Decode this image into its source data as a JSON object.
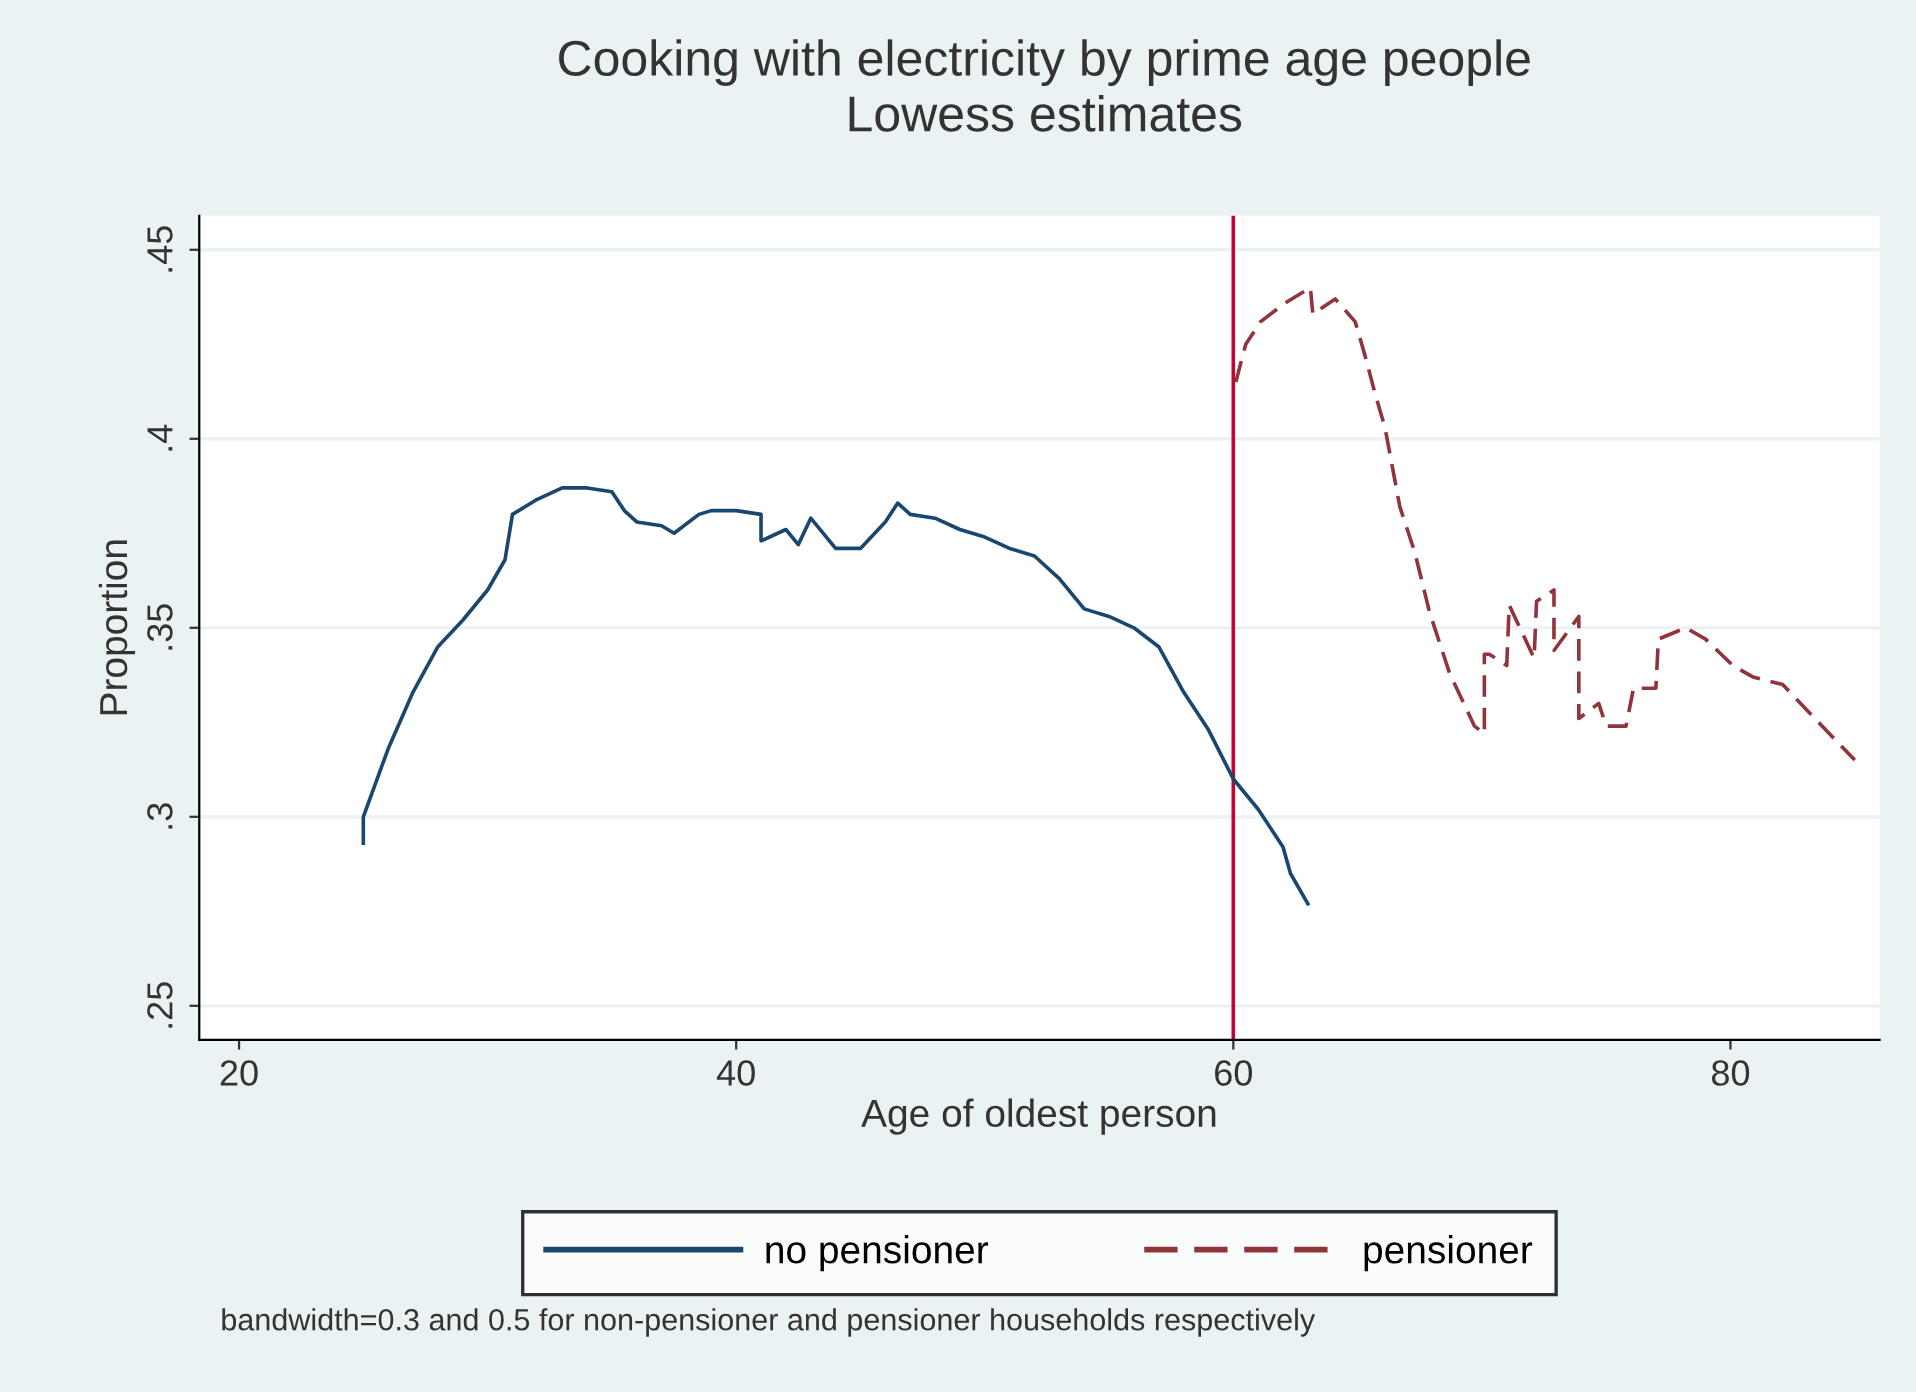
{
  "chart_data": {
    "type": "line",
    "title": "Cooking with electricity by prime age people",
    "subtitle": "Lowess estimates",
    "xlabel": "Age of oldest person",
    "ylabel": "Proportion",
    "xlim": [
      18.4,
      86
    ],
    "xticks": [
      20,
      40,
      60,
      80
    ],
    "ylim": [
      0.241,
      0.459
    ],
    "yticks": [
      {
        "value": 0.25,
        "label": ".25"
      },
      {
        "value": 0.3,
        "label": ".3"
      },
      {
        "value": 0.35,
        "label": ".35"
      },
      {
        "value": 0.4,
        "label": ".4"
      },
      {
        "value": 0.45,
        "label": ".45"
      }
    ],
    "grid": "y",
    "legend": "bottom",
    "ref_lines": [
      {
        "axis": "x",
        "value": 60,
        "color": "#c10534"
      }
    ],
    "annotations": [
      "bandwidth=0.3 and 0.5 for non-pensioner and pensioner households respectively"
    ],
    "series": [
      {
        "name": "no pensioner",
        "color": "#1a476f",
        "line_style": "solid",
        "x": [
          25,
          25,
          26,
          27,
          28,
          29,
          30,
          30.7,
          31,
          32,
          33,
          34,
          35,
          35.5,
          36,
          37,
          37.5,
          38.5,
          39,
          40,
          41,
          41,
          42,
          42.5,
          43,
          44,
          45,
          46,
          46.5,
          47,
          48,
          49,
          50,
          51,
          52,
          53,
          54,
          55,
          56,
          57,
          58,
          59,
          60,
          61,
          62,
          62.3,
          63
        ],
        "values": [
          0.293,
          0.3,
          0.318,
          0.333,
          0.345,
          0.352,
          0.36,
          0.368,
          0.38,
          0.384,
          0.387,
          0.387,
          0.386,
          0.381,
          0.378,
          0.377,
          0.375,
          0.38,
          0.381,
          0.381,
          0.38,
          0.373,
          0.376,
          0.372,
          0.379,
          0.371,
          0.371,
          0.378,
          0.383,
          0.38,
          0.379,
          0.376,
          0.374,
          0.371,
          0.369,
          0.363,
          0.355,
          0.353,
          0.35,
          0.345,
          0.333,
          0.323,
          0.31,
          0.302,
          0.292,
          0.285,
          0.277
        ]
      },
      {
        "name": "pensioner",
        "color": "#90353b",
        "line_style": "dashed",
        "x": [
          60.1,
          60.5,
          61.1,
          62.1,
          63.1,
          63.2,
          64.1,
          64.9,
          65.3,
          65.7,
          66.1,
          66.7,
          67.3,
          67.9,
          68.7,
          69.7,
          70.1,
          70.1,
          70.3,
          71.0,
          71.1,
          72.1,
          72.2,
          72.9,
          72.9,
          73.9,
          73.9,
          74.7,
          75,
          75.8,
          76.1,
          77,
          77.1,
          78.2,
          79,
          80.1,
          80.9,
          82.1,
          83.4,
          85
        ],
        "values": [
          0.415,
          0.425,
          0.431,
          0.436,
          0.44,
          0.433,
          0.437,
          0.431,
          0.422,
          0.412,
          0.403,
          0.382,
          0.37,
          0.354,
          0.338,
          0.324,
          0.322,
          0.343,
          0.343,
          0.34,
          0.356,
          0.342,
          0.357,
          0.36,
          0.344,
          0.353,
          0.326,
          0.33,
          0.324,
          0.324,
          0.334,
          0.334,
          0.347,
          0.35,
          0.347,
          0.34,
          0.337,
          0.335,
          0.326,
          0.315
        ]
      }
    ]
  }
}
